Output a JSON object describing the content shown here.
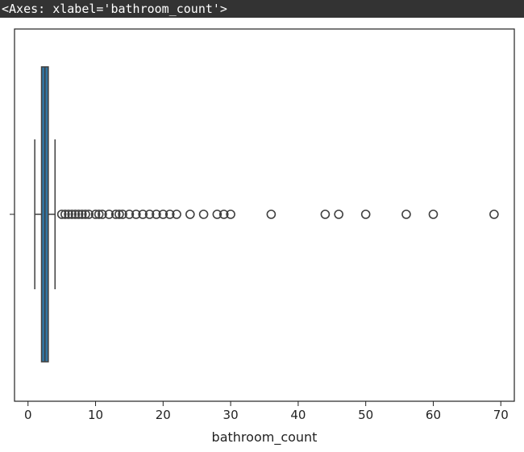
{
  "output_repr": "<Axes: xlabel='bathroom_count'>",
  "chart_data": {
    "type": "boxplot",
    "orientation": "horizontal",
    "xlabel": "bathroom_count",
    "ylabel": "",
    "title": "",
    "xlim": [
      -2,
      72
    ],
    "xticks": [
      0,
      10,
      20,
      30,
      40,
      50,
      60,
      70
    ],
    "grid": false,
    "box": {
      "whisker_low": 1,
      "q1": 2,
      "median": 2.5,
      "q3": 3,
      "whisker_high": 4,
      "fill": "#3274a1"
    },
    "outliers": [
      5,
      5.5,
      6,
      6.5,
      7,
      7.5,
      8,
      8.5,
      9,
      10,
      10.5,
      11,
      12,
      13,
      13.5,
      14,
      15,
      16,
      17,
      18,
      19,
      20,
      21,
      22,
      24,
      26,
      28,
      29,
      30,
      36,
      44,
      46,
      50,
      56,
      60,
      69
    ]
  }
}
